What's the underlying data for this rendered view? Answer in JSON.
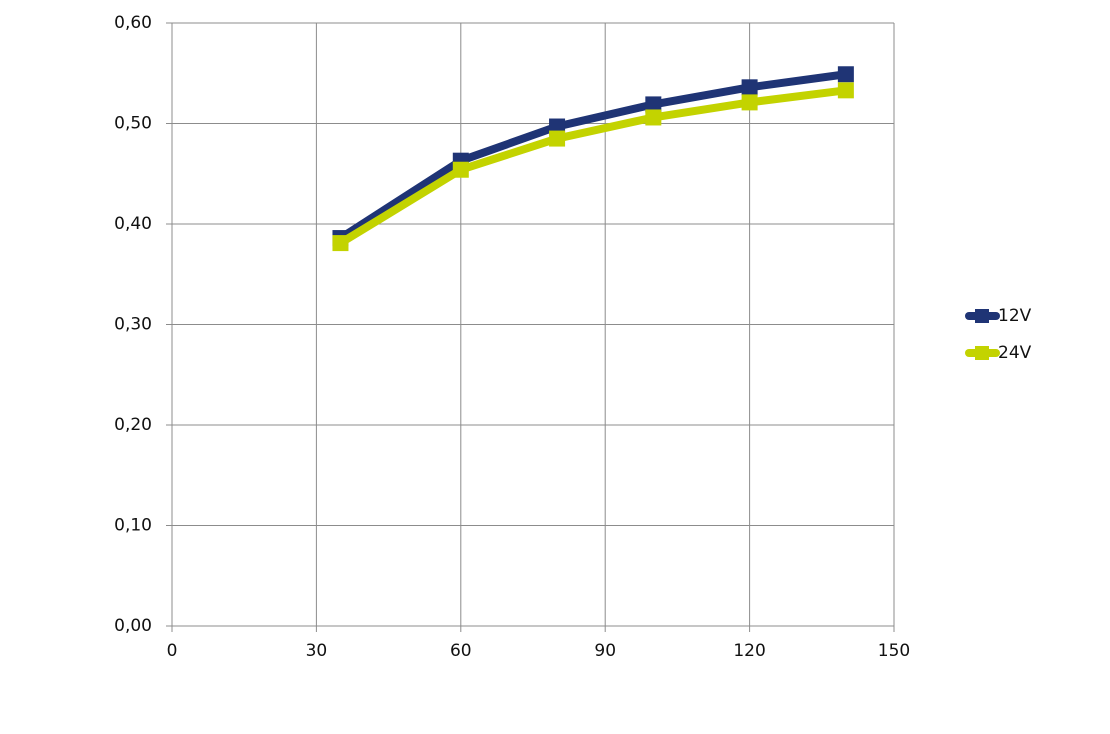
{
  "chart_data": {
    "type": "line",
    "x": [
      35,
      60,
      80,
      100,
      120,
      140
    ],
    "series": [
      {
        "name": "12V",
        "color": "#1f3475",
        "values": [
          0.386,
          0.463,
          0.497,
          0.519,
          0.536,
          0.549
        ]
      },
      {
        "name": "24V",
        "color": "#c3d300",
        "values": [
          0.381,
          0.454,
          0.485,
          0.506,
          0.521,
          0.533
        ]
      }
    ],
    "xlim": [
      0,
      150
    ],
    "xticks": [
      0,
      30,
      60,
      90,
      120,
      150
    ],
    "ylim": [
      0,
      0.6
    ],
    "yticks": [
      {
        "value": 0,
        "label": "0,00"
      },
      {
        "value": 0.1,
        "label": "0,10"
      },
      {
        "value": 0.2,
        "label": "0,20"
      },
      {
        "value": 0.3,
        "label": "0,30"
      },
      {
        "value": 0.4,
        "label": "0,40"
      },
      {
        "value": 0.5,
        "label": "0,50"
      },
      {
        "value": 0.6,
        "label": "0,60"
      }
    ],
    "grid": true,
    "legend": "right"
  }
}
